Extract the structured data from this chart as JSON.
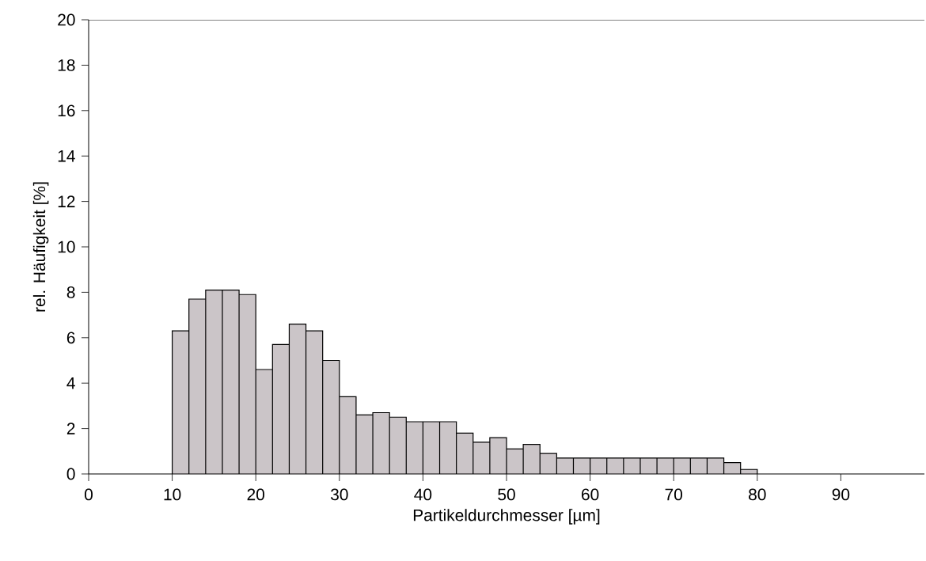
{
  "chart_data": {
    "type": "histogram",
    "xlabel": "Partikeldurchmesser [µm]",
    "ylabel": "rel. Häufigkeit [%]",
    "bins": [
      10,
      12,
      14,
      16,
      18,
      20,
      22,
      24,
      26,
      28,
      30,
      32,
      34,
      36,
      38,
      40,
      42,
      44,
      46,
      48,
      50,
      52,
      54,
      56,
      58,
      60,
      62,
      64,
      66,
      68,
      70,
      72,
      74,
      76,
      78,
      80
    ],
    "values": [
      6.3,
      7.7,
      8.1,
      8.1,
      7.9,
      4.6,
      5.7,
      6.6,
      6.3,
      5.0,
      3.4,
      2.6,
      2.7,
      2.5,
      2.3,
      2.3,
      2.3,
      1.8,
      1.4,
      1.6,
      1.1,
      1.3,
      0.9,
      0.7,
      0.7,
      0.7,
      0.7,
      0.7,
      0.7,
      0.7,
      0.7,
      0.7,
      0.7,
      0.5,
      0.2
    ],
    "color": "#cbc5c8",
    "xlim": [
      0,
      100
    ],
    "ylim": [
      0,
      20
    ],
    "xticks": [
      0,
      10,
      20,
      30,
      40,
      50,
      60,
      70,
      80,
      90
    ],
    "yticks": [
      0,
      2,
      4,
      6,
      8,
      10,
      12,
      14,
      16,
      18,
      20
    ]
  }
}
